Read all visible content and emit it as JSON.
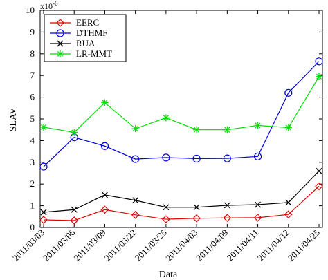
{
  "chart_data": {
    "type": "line",
    "xlabel": "Data",
    "ylabel": "SLAV",
    "y_multiplier": "x10",
    "y_multiplier_exp": "-6",
    "ylim": [
      0,
      10
    ],
    "yticks": [
      "0",
      "1",
      "2",
      "3",
      "4",
      "5",
      "6",
      "7",
      "8",
      "9",
      "10"
    ],
    "categories": [
      "2011/03/03",
      "2011/03/06",
      "2011/03/09",
      "2011/03/22",
      "2011/03/25",
      "2011/04/03",
      "2011/04/09",
      "2011/04/11",
      "2011/04/12",
      "2011/04/25"
    ],
    "grid": false,
    "legend_position": "top-left",
    "series": [
      {
        "name": "EERC",
        "color": "#e00000",
        "marker": "diamond",
        "values": [
          0.35,
          0.32,
          0.82,
          0.58,
          0.38,
          0.42,
          0.44,
          0.45,
          0.6,
          1.9
        ]
      },
      {
        "name": "DTHMF",
        "color": "#0000dd",
        "marker": "circle",
        "values": [
          2.8,
          4.15,
          3.75,
          3.15,
          3.22,
          3.17,
          3.18,
          3.27,
          6.2,
          7.65
        ]
      },
      {
        "name": "RUA",
        "color": "#000000",
        "marker": "x",
        "values": [
          0.7,
          0.82,
          1.5,
          1.25,
          0.93,
          0.93,
          1.02,
          1.05,
          1.15,
          2.6
        ]
      },
      {
        "name": "LR-MMT",
        "color": "#00dd00",
        "marker": "star",
        "values": [
          4.62,
          4.38,
          5.75,
          4.55,
          5.05,
          4.5,
          4.5,
          4.7,
          4.6,
          6.95
        ]
      }
    ]
  }
}
